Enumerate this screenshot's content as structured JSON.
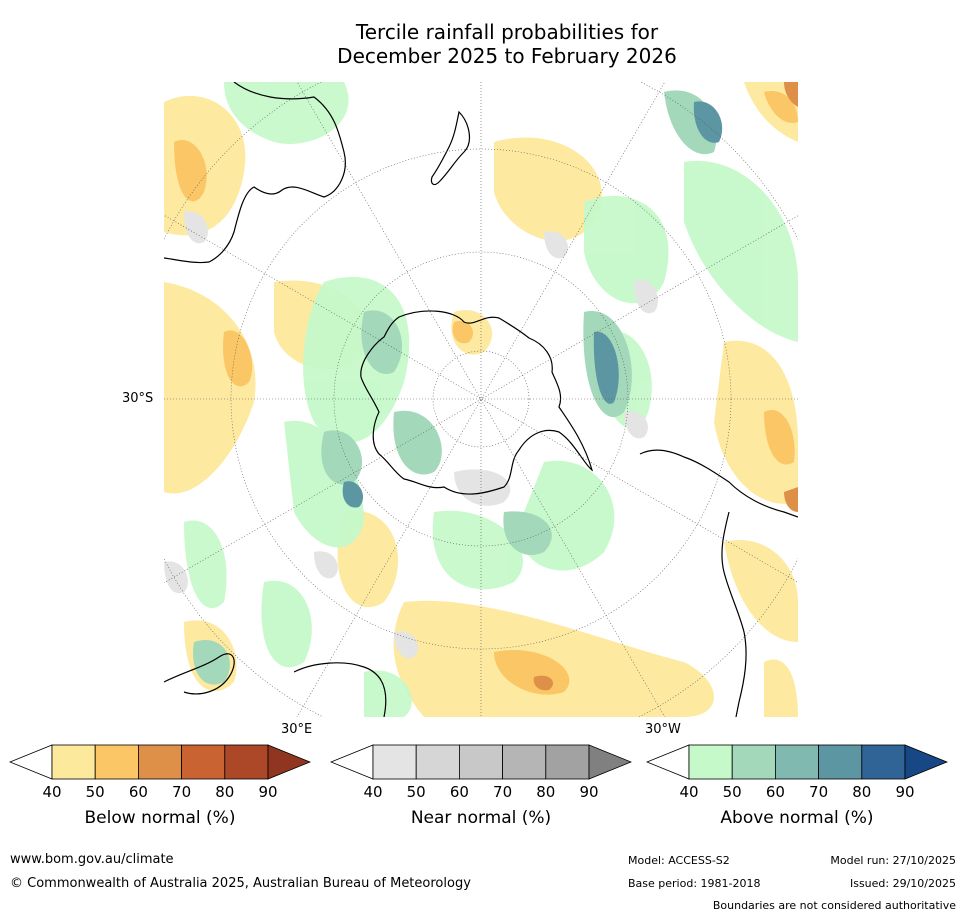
{
  "title_line1": "Tercile rainfall probabilities for",
  "title_line2": "December 2025 to February 2026",
  "map": {
    "lat_labels": [
      "30°S"
    ],
    "lon_labels": [
      "30°E",
      "30°W"
    ]
  },
  "colorbars": [
    {
      "label": "Below normal (%)",
      "ticks": [
        "40",
        "50",
        "60",
        "70",
        "80",
        "90"
      ],
      "colors": [
        "#ffffff",
        "#fde99b",
        "#fbc766",
        "#de9048",
        "#c96332",
        "#ac4728",
        "#8f3520"
      ]
    },
    {
      "label": "Near normal (%)",
      "ticks": [
        "40",
        "50",
        "60",
        "70",
        "80",
        "90"
      ],
      "colors": [
        "#ffffff",
        "#e4e4e4",
        "#d6d6d6",
        "#c8c8c8",
        "#b5b5b5",
        "#a2a2a2",
        "#808080"
      ]
    },
    {
      "label": "Above normal (%)",
      "ticks": [
        "40",
        "50",
        "60",
        "70",
        "80",
        "90"
      ],
      "colors": [
        "#ffffff",
        "#c6f9ca",
        "#a3d9ba",
        "#80b9b0",
        "#5c96a3",
        "#316496",
        "#174785"
      ]
    }
  ],
  "footer": {
    "site": "www.bom.gov.au/climate",
    "copyright": "© Commonwealth of Australia 2025, Australian Bureau of Meteorology",
    "model": "Model: ACCESS-S2",
    "base_period": "Base period: 1981-2018",
    "model_run": "Model run: 27/10/2025",
    "issued": "Issued: 29/10/2025",
    "disclaimer": "Boundaries are not considered authoritative"
  }
}
